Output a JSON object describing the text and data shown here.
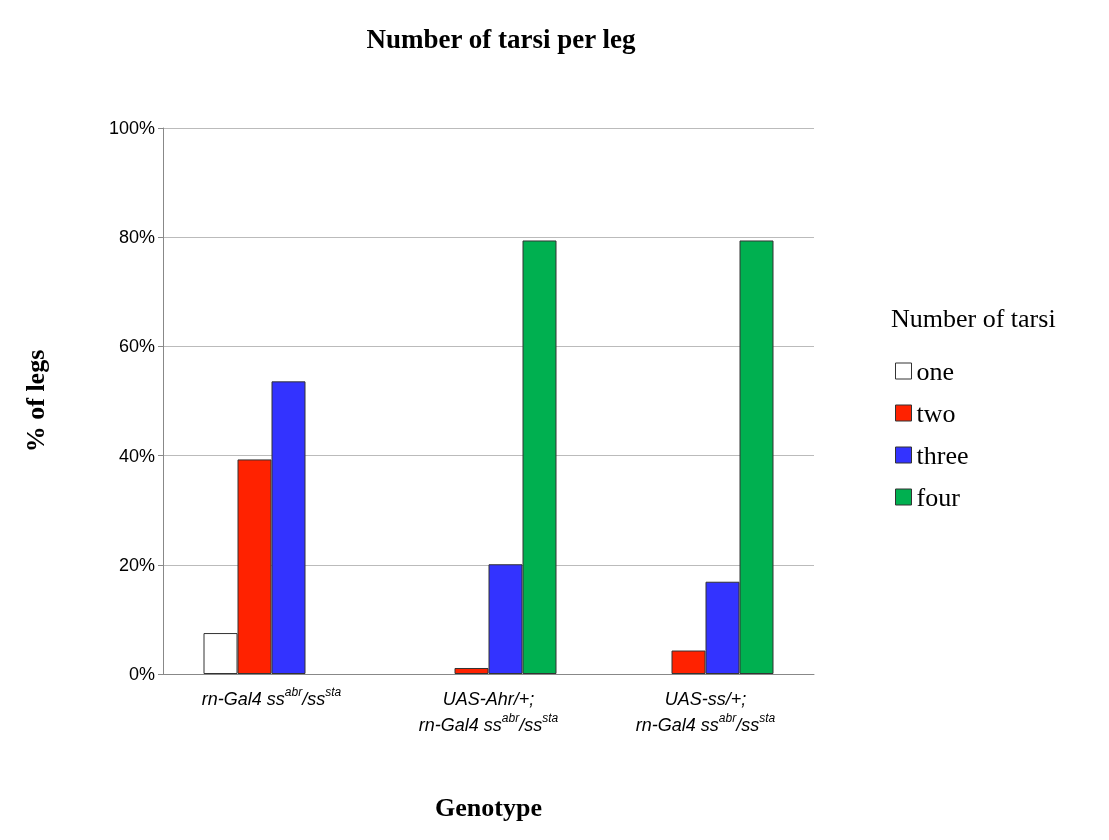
{
  "chart_data": {
    "type": "bar",
    "title": "Number of tarsi per leg",
    "xlabel": "Genotype",
    "ylabel": "% of legs",
    "legend_title": "Number of tarsi",
    "categories": [
      "rn-Gal4 ss$^{abr}$/ss$^{sta}$",
      "UAS-Ahr/+;\nrn-Gal4 ss$^{abr}$/ss$^{sta}$",
      "UAS-ss/+;\nrn-Gal4 ss$^{abr}$/ss$^{sta}$"
    ],
    "series": [
      {
        "name": "one",
        "color": "#ffffff",
        "values": [
          7.5,
          null,
          null
        ]
      },
      {
        "name": "two",
        "color": "#ff2200",
        "values": [
          39.3,
          1.1,
          4.3
        ]
      },
      {
        "name": "three",
        "color": "#3333ff",
        "values": [
          53.6,
          20.1,
          16.9
        ]
      },
      {
        "name": "four",
        "color": "#00b050",
        "values": [
          null,
          79.4,
          79.4
        ]
      }
    ],
    "ylim": [
      0,
      100
    ],
    "yticks": [
      {
        "value": 0,
        "label": "0%"
      },
      {
        "value": 20,
        "label": "20%"
      },
      {
        "value": 40,
        "label": "40%"
      },
      {
        "value": 60,
        "label": "60%"
      },
      {
        "value": 80,
        "label": "80%"
      },
      {
        "value": 100,
        "label": "100%"
      }
    ],
    "grid": "y",
    "legend": "right"
  }
}
